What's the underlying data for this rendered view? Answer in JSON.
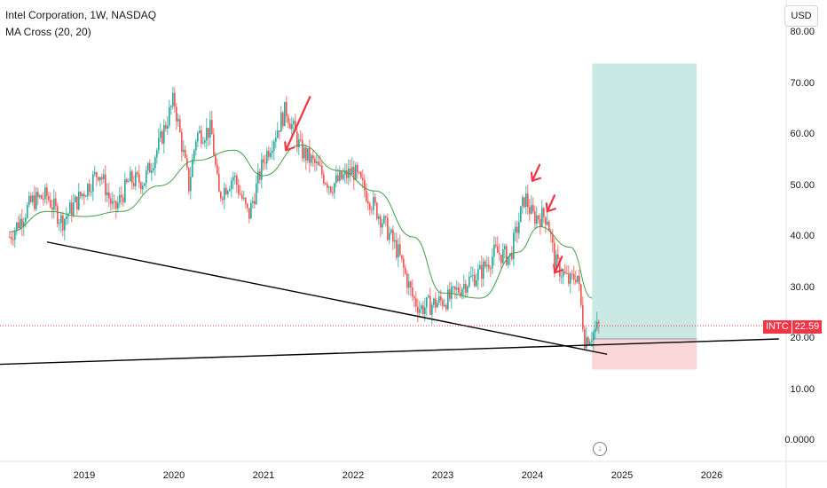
{
  "header": {
    "title": "Intel Corporation, 1W, NASDAQ",
    "indicator": "MA Cross (20, 20)"
  },
  "currency_button": "USD",
  "price_tag": {
    "symbol": "INTC",
    "value": "22.59"
  },
  "colors": {
    "up_candle": "#26a69a",
    "down_candle": "#ef5350",
    "moving_average": "#43a047",
    "target_zone": "#cbe9e4",
    "stop_zone": "#fbd6d6",
    "annotation_arrows": "#f23645",
    "trendlines": "#000000"
  },
  "scroll_button_icon": "arrow-down-circle-icon",
  "chart_data": {
    "type": "candlestick",
    "y_axis": {
      "ticks": [
        "0.0000",
        "10.00",
        "20.00",
        "30.00",
        "40.00",
        "50.00",
        "60.00",
        "70.00",
        "80.00"
      ],
      "ylim": [
        -1,
        87
      ],
      "grid": false
    },
    "x_axis": {
      "ticks": [
        "2019",
        "2020",
        "2021",
        "2022",
        "2023",
        "2024",
        "2025",
        "2026"
      ]
    },
    "series": [
      {
        "name": "price",
        "points": [
          [
            "2018-03",
            40
          ],
          [
            "2018-06",
            47
          ],
          [
            "2018-08",
            48
          ],
          [
            "2018-10",
            43
          ],
          [
            "2018-12",
            47
          ],
          [
            "2019-03",
            53
          ],
          [
            "2019-05",
            45
          ],
          [
            "2019-07",
            51
          ],
          [
            "2019-09",
            51
          ],
          [
            "2019-11",
            58
          ],
          [
            "2020-01",
            67
          ],
          [
            "2020-03",
            50
          ],
          [
            "2020-04",
            60
          ],
          [
            "2020-06",
            61
          ],
          [
            "2020-07",
            48
          ],
          [
            "2020-09",
            52
          ],
          [
            "2020-11",
            44
          ],
          [
            "2021-01",
            55
          ],
          [
            "2021-04",
            65
          ],
          [
            "2021-06",
            57
          ],
          [
            "2021-08",
            54
          ],
          [
            "2021-10",
            50
          ],
          [
            "2021-12",
            52
          ],
          [
            "2022-01",
            53
          ],
          [
            "2022-03",
            48
          ],
          [
            "2022-05",
            43
          ],
          [
            "2022-07",
            37
          ],
          [
            "2022-09",
            28
          ],
          [
            "2022-10",
            26
          ],
          [
            "2022-12",
            27
          ],
          [
            "2023-02",
            28
          ],
          [
            "2023-04",
            31
          ],
          [
            "2023-06",
            33
          ],
          [
            "2023-08",
            37
          ],
          [
            "2023-10",
            36
          ],
          [
            "2023-12",
            48
          ],
          [
            "2024-01",
            44
          ],
          [
            "2024-03",
            44
          ],
          [
            "2024-04",
            35
          ],
          [
            "2024-06",
            31
          ],
          [
            "2024-07",
            33
          ],
          [
            "2024-08",
            20
          ],
          [
            "2024-09",
            21
          ],
          [
            "2024-10",
            22.59
          ]
        ]
      },
      {
        "name": "MA Cross (20, 20)",
        "points": [
          [
            "2018-03",
            41
          ],
          [
            "2018-08",
            45
          ],
          [
            "2019-01",
            44
          ],
          [
            "2019-06",
            45
          ],
          [
            "2019-11",
            50
          ],
          [
            "2020-04",
            55
          ],
          [
            "2020-09",
            57
          ],
          [
            "2021-01",
            52
          ],
          [
            "2021-06",
            58
          ],
          [
            "2021-11",
            53
          ],
          [
            "2022-04",
            49
          ],
          [
            "2022-09",
            40
          ],
          [
            "2023-01",
            29
          ],
          [
            "2023-06",
            28
          ],
          [
            "2023-11",
            37
          ],
          [
            "2024-02",
            42
          ],
          [
            "2024-06",
            38
          ],
          [
            "2024-09",
            28
          ]
        ]
      }
    ],
    "trendlines": [
      {
        "from": [
          "2018-08",
          39
        ],
        "to": [
          "2024-11",
          17
        ]
      },
      {
        "from": [
          "2018-01",
          15
        ],
        "to": [
          "2026-10",
          20
        ]
      }
    ],
    "position": {
      "entry": 20.0,
      "stop": 14.0,
      "target": 74.0,
      "start": "2024-09",
      "end": "2025-11"
    },
    "annotations": [
      {
        "type": "arrow",
        "at": [
          "2021-04",
          57
        ]
      },
      {
        "type": "arrow",
        "at": [
          "2024-01",
          51
        ]
      },
      {
        "type": "arrow",
        "at": [
          "2024-03",
          45
        ]
      },
      {
        "type": "arrow",
        "at": [
          "2024-04",
          33
        ]
      }
    ]
  }
}
